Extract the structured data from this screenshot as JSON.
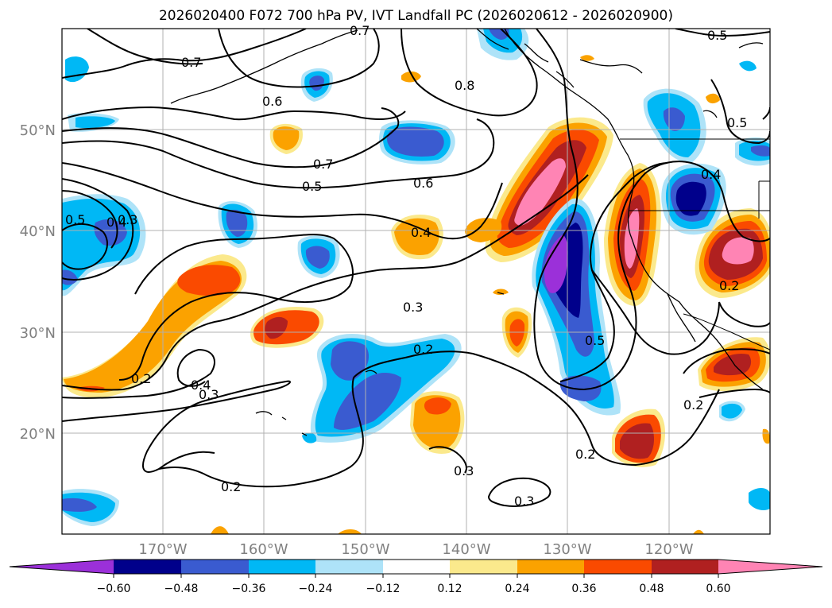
{
  "title": "2026020400 F072 700 hPa PV, IVT Landfall PC (2026020612 - 2026020900)",
  "lat_labels": [
    "50°N",
    "40°N",
    "30°N",
    "20°N"
  ],
  "lon_labels": [
    "170°W",
    "160°W",
    "150°W",
    "140°W",
    "130°W",
    "120°W"
  ],
  "colorbar": {
    "tick_labels": [
      "−0.60",
      "−0.48",
      "−0.36",
      "−0.24",
      "−0.12",
      "0.12",
      "0.24",
      "0.36",
      "0.48",
      "0.60"
    ],
    "colors": [
      "#9b30d9",
      "#00008b",
      "#3a5bd0",
      "#00b8f5",
      "#aee3f8",
      "#ffffff",
      "#fbe98c",
      "#fba200",
      "#fa4a00",
      "#b02020",
      "#ff84b4"
    ]
  },
  "contour_labels": [
    "0.7",
    "0.8",
    "0.6",
    "0.5",
    "0.7",
    "0.5",
    "0.6",
    "0.4",
    "0.3",
    "0.4",
    "0.5",
    "0.3",
    "0.2",
    "0.5",
    "0.2",
    "0.4",
    "0.3",
    "0.2",
    "0.3",
    "0.2",
    "0.3",
    "0.2",
    "0.5",
    "0.4",
    "0.2",
    "0.7"
  ],
  "contour_levels": [
    0.2,
    0.3,
    0.4,
    0.5,
    0.6,
    0.7,
    0.8
  ]
}
